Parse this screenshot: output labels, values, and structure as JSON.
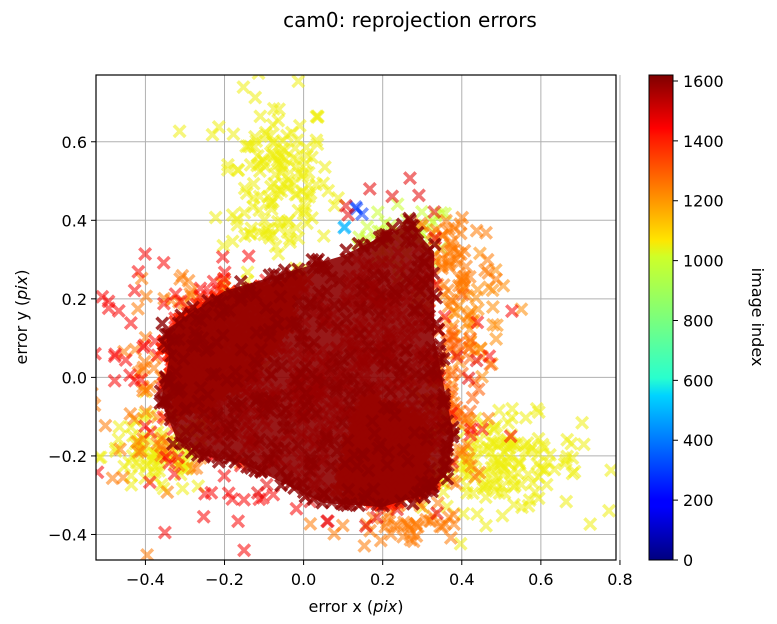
{
  "chart_data": {
    "type": "scatter",
    "title": "cam0: reprojection errors",
    "xlabel": "error x (pix)",
    "ylabel": "error y (pix)",
    "xlim": [
      -0.525,
      0.79
    ],
    "ylim": [
      -0.465,
      0.77
    ],
    "x_ticks": [
      -0.4,
      -0.2,
      0.0,
      0.2,
      0.4,
      0.6,
      0.8
    ],
    "x_tick_labels": [
      "−0.4",
      "−0.2",
      "0.0",
      "0.2",
      "0.4",
      "0.6",
      "0.8"
    ],
    "y_ticks": [
      -0.4,
      -0.2,
      0.0,
      0.2,
      0.4,
      0.6
    ],
    "y_tick_labels": [
      "−0.4",
      "−0.2",
      "0.0",
      "0.2",
      "0.4",
      "0.6"
    ],
    "grid": true,
    "marker": "x (filled, semi-transparent)",
    "colorbar": {
      "label": "image index",
      "colormap": "jet",
      "range": [
        0,
        1620
      ],
      "ticks": [
        0,
        200,
        400,
        600,
        800,
        1000,
        1200,
        1400,
        1600
      ],
      "tick_labels": [
        "0",
        "200",
        "400",
        "600",
        "800",
        "1000",
        "1200",
        "1400",
        "1600"
      ]
    },
    "clusters": [
      {
        "image_index": 1050,
        "center": [
          -0.07,
          0.5
        ],
        "spread": [
          0.07,
          0.11
        ],
        "points": 150
      },
      {
        "image_index": 1050,
        "center": [
          0.5,
          -0.22
        ],
        "spread": [
          0.1,
          0.06
        ],
        "points": 150
      },
      {
        "image_index": 1050,
        "center": [
          -0.37,
          -0.2
        ],
        "spread": [
          0.07,
          0.05
        ],
        "points": 80
      },
      {
        "image_index": 1000,
        "center": [
          0.26,
          0.36
        ],
        "spread": [
          0.06,
          0.04
        ],
        "points": 40
      },
      {
        "image_index": 1250,
        "center": [
          -0.35,
          -0.05
        ],
        "spread": [
          0.08,
          0.1
        ],
        "points": 70
      },
      {
        "image_index": 1250,
        "center": [
          0.35,
          -0.15
        ],
        "spread": [
          0.05,
          0.1
        ],
        "points": 60
      },
      {
        "image_index": 1250,
        "center": [
          0.38,
          0.3
        ],
        "spread": [
          0.05,
          0.08
        ],
        "points": 60
      },
      {
        "image_index": 1250,
        "center": [
          0.25,
          -0.38
        ],
        "spread": [
          0.08,
          0.03
        ],
        "points": 40
      },
      {
        "image_index": 1220,
        "center": [
          0.43,
          0.12
        ],
        "spread": [
          0.05,
          0.08
        ],
        "points": 45
      },
      {
        "image_index": 1300,
        "center": [
          0.37,
          0.0
        ],
        "spread": [
          0.05,
          0.09
        ],
        "points": 30
      },
      {
        "image_index": 1250,
        "center": [
          -0.2,
          0.23
        ],
        "spread": [
          0.08,
          0.02
        ],
        "points": 30
      },
      {
        "image_index": 1450,
        "center": [
          -0.05,
          0.0
        ],
        "spread": [
          0.22,
          0.14
        ],
        "points": 350
      },
      {
        "image_index": 1480,
        "center": [
          0.2,
          0.1
        ],
        "spread": [
          0.08,
          0.14
        ],
        "points": 150
      },
      {
        "image_index": 1480,
        "center": [
          0.15,
          -0.2
        ],
        "spread": [
          0.1,
          0.08
        ],
        "points": 100
      },
      {
        "image_index": 1450,
        "center": [
          -0.1,
          -0.12
        ],
        "spread": [
          0.12,
          0.08
        ],
        "points": 80
      },
      {
        "image_index": 300,
        "center": [
          0.14,
          0.42
        ],
        "spread": [
          0.02,
          0.01
        ],
        "points": 3
      },
      {
        "image_index": 500,
        "center": [
          0.1,
          0.38
        ],
        "spread": [
          0.01,
          0.01
        ],
        "points": 2
      }
    ],
    "shapes": [
      {
        "image_index": 1600,
        "polygon": [
          [
            -0.35,
            0.12
          ],
          [
            -0.2,
            0.22
          ],
          [
            0.0,
            0.28
          ],
          [
            0.1,
            0.31
          ],
          [
            0.2,
            0.36
          ],
          [
            0.27,
            0.39
          ],
          [
            0.33,
            0.32
          ],
          [
            0.33,
            0.1
          ],
          [
            0.36,
            -0.05
          ],
          [
            0.38,
            -0.15
          ],
          [
            0.36,
            -0.25
          ],
          [
            0.3,
            -0.3
          ],
          [
            0.2,
            -0.33
          ],
          [
            0.05,
            -0.32
          ],
          [
            -0.05,
            -0.27
          ],
          [
            -0.15,
            -0.22
          ],
          [
            -0.25,
            -0.2
          ],
          [
            -0.32,
            -0.16
          ],
          [
            -0.36,
            -0.06
          ],
          [
            -0.34,
            0.05
          ]
        ]
      },
      {
        "image_index": 1400,
        "polygon": [
          [
            -0.35,
            0.07
          ],
          [
            -0.3,
            0.18
          ],
          [
            -0.15,
            0.22
          ],
          [
            0.0,
            0.26
          ],
          [
            -0.05,
            0.1
          ],
          [
            -0.2,
            -0.05
          ],
          [
            -0.32,
            -0.1
          ]
        ]
      },
      {
        "image_index": 1400,
        "polygon": [
          [
            0.15,
            -0.05
          ],
          [
            0.3,
            -0.1
          ],
          [
            0.32,
            -0.28
          ],
          [
            0.2,
            -0.33
          ],
          [
            0.08,
            -0.28
          ]
        ]
      }
    ]
  }
}
